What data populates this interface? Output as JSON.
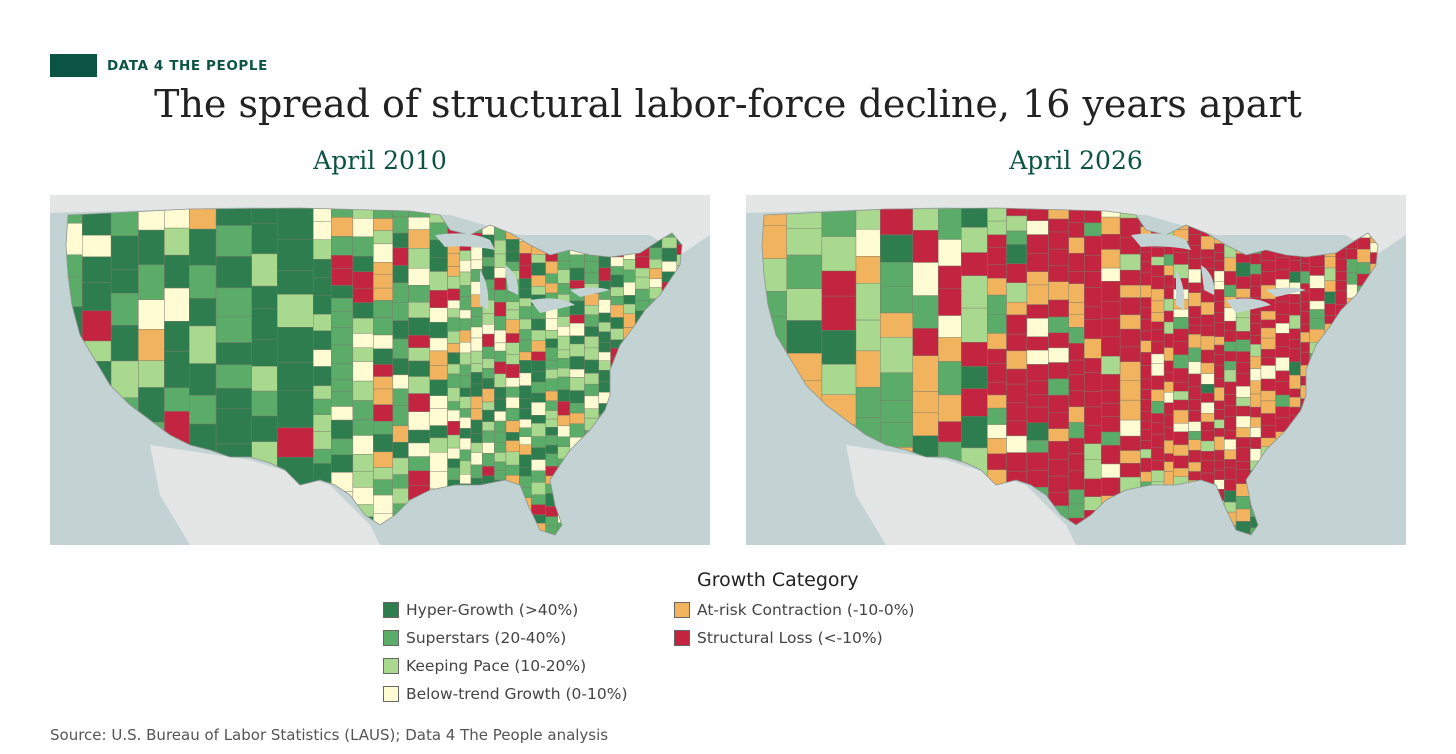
{
  "brand": {
    "label": "DATA 4 THE PEOPLE",
    "color": "#0b5444"
  },
  "title": "The spread of structural labor-force decline, 16 years apart",
  "panels": [
    {
      "label": "April 2010",
      "dominant": [
        "hyper",
        "superstars",
        "keeping",
        "below"
      ]
    },
    {
      "label": "April 2026",
      "dominant": [
        "loss",
        "atrisk",
        "superstars",
        "keeping"
      ]
    }
  ],
  "legend": {
    "title": "Growth Category",
    "items": [
      {
        "key": "hyper",
        "label": "Hyper-Growth (>40%)",
        "color": "#2e7d4f"
      },
      {
        "key": "superstars",
        "label": "Superstars (20-40%)",
        "color": "#5aac68"
      },
      {
        "key": "keeping",
        "label": "Keeping Pace (10-20%)",
        "color": "#a9d88f"
      },
      {
        "key": "below",
        "label": "Below-trend Growth (0-10%)",
        "color": "#fffbd2"
      },
      {
        "key": "atrisk",
        "label": "At-risk Contraction (-10-0%)",
        "color": "#f2b35f"
      },
      {
        "key": "loss",
        "label": "Structural Loss (<-10%)",
        "color": "#c3243f"
      }
    ]
  },
  "source": "Source: U.S. Bureau of Labor Statistics (LAUS); Data 4 The People analysis"
}
